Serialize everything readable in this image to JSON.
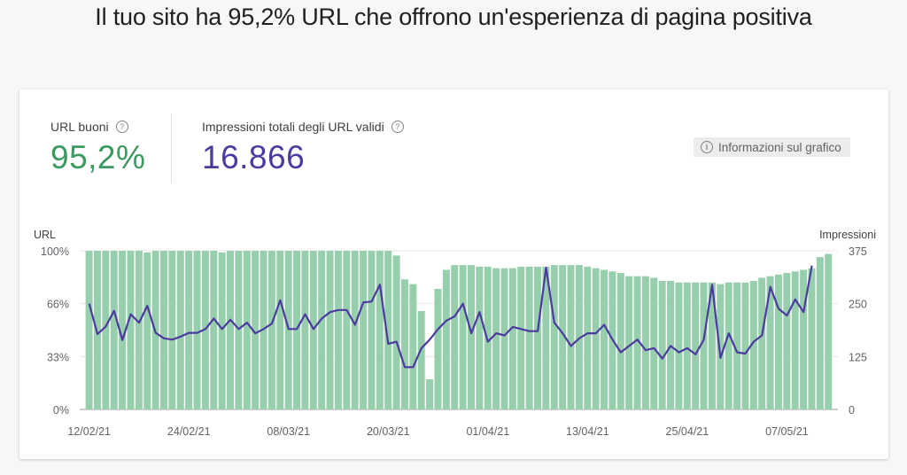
{
  "headline": "Il tuo sito ha 95,2% URL che offrono un'esperienza di pagina positiva",
  "metrics": {
    "good_urls": {
      "label": "URL buoni",
      "value": "95,2%",
      "color": "#3b9a5f"
    },
    "impressions": {
      "label": "Impressioni totali degli URL validi",
      "value": "16.866",
      "color": "#4b3aa0"
    }
  },
  "info_button": {
    "label": "Informazioni sul grafico",
    "icon": "info-icon"
  },
  "help_icon": "?",
  "info_glyph": "i",
  "chart_data": {
    "type": "bar+line",
    "left_axis_title": "URL",
    "right_axis_title": "Impressioni",
    "left_ticks": [
      "100%",
      "66%",
      "33%",
      "0%"
    ],
    "right_ticks": [
      "375",
      "250",
      "125",
      "0"
    ],
    "ylim_left": [
      0,
      100
    ],
    "ylim_right": [
      0,
      375
    ],
    "x_tick_labels": [
      "12/02/21",
      "24/02/21",
      "08/03/21",
      "20/03/21",
      "01/04/21",
      "13/04/21",
      "25/04/21",
      "07/05/21"
    ],
    "x_tick_indices": [
      0,
      12,
      24,
      36,
      48,
      60,
      72,
      84
    ],
    "grid": true,
    "series": [
      {
        "name": "URL buoni (%)",
        "type": "bar",
        "axis": "left",
        "color": "#97cfad",
        "values": [
          100,
          100,
          100,
          100,
          100,
          100,
          100,
          99,
          100,
          100,
          100,
          100,
          100,
          100,
          100,
          100,
          99,
          100,
          100,
          100,
          100,
          100,
          100,
          100,
          100,
          100,
          100,
          100,
          100,
          100,
          100,
          100,
          100,
          100,
          100,
          100,
          100,
          97,
          82,
          79,
          62,
          19,
          76,
          88,
          91,
          91,
          91,
          90,
          90,
          89,
          89,
          89,
          90,
          90,
          90,
          90,
          91,
          91,
          91,
          91,
          90,
          89,
          88,
          87,
          86,
          84,
          84,
          84,
          83,
          81,
          81,
          80,
          80,
          80,
          80,
          80,
          79,
          80,
          80,
          80,
          81,
          83,
          84,
          85,
          86,
          87,
          88,
          89,
          96,
          98
        ],
        "note": "bars at index 88-89 reach ~96-98%"
      },
      {
        "name": "Impressioni",
        "type": "line",
        "axis": "right",
        "color": "#4b3aa0",
        "values": [
          250,
          178,
          196,
          233,
          164,
          225,
          205,
          245,
          181,
          168,
          165,
          172,
          181,
          181,
          190,
          215,
          190,
          212,
          190,
          205,
          180,
          190,
          203,
          258,
          190,
          190,
          225,
          190,
          215,
          230,
          235,
          235,
          200,
          253,
          255,
          295,
          155,
          160,
          100,
          100,
          145,
          165,
          190,
          210,
          220,
          250,
          180,
          230,
          160,
          180,
          175,
          195,
          190,
          185,
          185,
          335,
          205,
          180,
          150,
          168,
          180,
          180,
          200,
          165,
          135,
          150,
          165,
          140,
          145,
          120,
          150,
          135,
          145,
          130,
          165,
          295,
          122,
          180,
          135,
          132,
          160,
          175,
          290,
          238,
          222,
          260,
          230,
          340,
          null,
          null
        ]
      }
    ]
  }
}
